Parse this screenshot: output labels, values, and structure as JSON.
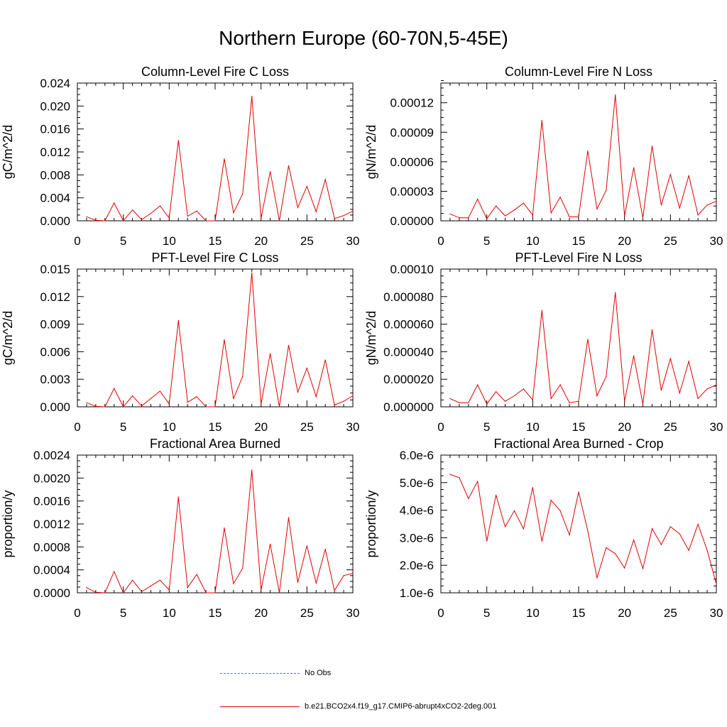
{
  "figure": {
    "title": "Northern Europe (60-70N,5-45E)",
    "line_color": "#e00000",
    "obs_color": "#5b6fb5"
  },
  "legend": [
    {
      "label": "No Obs",
      "style": "dashed",
      "color": "#5b6fb5"
    },
    {
      "label": "b.e21.BCO2x4.f19_g17.CMIP6-abrupt4xCO2-2deg.001",
      "style": "solid",
      "color": "#e00000"
    }
  ],
  "chart_data": [
    {
      "type": "line",
      "title": "Column-Level Fire C Loss",
      "xlabel": "",
      "ylabel": "gC/m^2/d",
      "xlim": [
        0,
        30
      ],
      "ylim": [
        0,
        0.024
      ],
      "xticks": [
        "0",
        "5",
        "10",
        "15",
        "20",
        "25",
        "30"
      ],
      "xtick_values": [
        0,
        5,
        10,
        15,
        20,
        25,
        30
      ],
      "yticks": [
        "0.000",
        "0.004",
        "0.008",
        "0.012",
        "0.016",
        "0.020",
        "0.024"
      ],
      "ytick_values": [
        0,
        0.004,
        0.008,
        0.012,
        0.016,
        0.02,
        0.024
      ],
      "x": [
        1,
        2,
        3,
        4,
        5,
        6,
        7,
        8,
        9,
        10,
        11,
        12,
        13,
        14,
        15,
        16,
        17,
        18,
        19,
        20,
        21,
        22,
        23,
        24,
        25,
        26,
        27,
        28,
        29,
        30
      ],
      "series": [
        {
          "name": "b.e21.BCO2x4.f19_g17.CMIP6-abrupt4xCO2-2deg.001",
          "values": [
            0.0007,
            0.0001,
            0.0,
            0.0031,
            0.0,
            0.0019,
            0.0002,
            0.0013,
            0.0026,
            0.0005,
            0.014,
            0.0008,
            0.0017,
            0.0,
            0.0,
            0.0108,
            0.0014,
            0.0047,
            0.0217,
            0.0004,
            0.0086,
            0.0,
            0.0096,
            0.0023,
            0.006,
            0.0016,
            0.0072,
            0.0004,
            0.0009,
            0.0017
          ]
        }
      ]
    },
    {
      "type": "line",
      "title": "Column-Level Fire N Loss",
      "xlabel": "",
      "ylabel": "gN/m^2/d",
      "xlim": [
        0,
        30
      ],
      "ylim": [
        0,
        0.00014
      ],
      "xticks": [
        "0",
        "5",
        "10",
        "15",
        "20",
        "25",
        "30"
      ],
      "xtick_values": [
        0,
        5,
        10,
        15,
        20,
        25,
        30
      ],
      "yticks": [
        "0.00000",
        "0.00003",
        "0.00006",
        "0.00009",
        "0.00012"
      ],
      "ytick_values": [
        0,
        3e-05,
        6e-05,
        9e-05,
        0.00012
      ],
      "x": [
        1,
        2,
        3,
        4,
        5,
        6,
        7,
        8,
        9,
        10,
        11,
        12,
        13,
        14,
        15,
        16,
        17,
        18,
        19,
        20,
        21,
        22,
        23,
        24,
        25,
        26,
        27,
        28,
        29,
        30
      ],
      "series": [
        {
          "name": "b.e21.BCO2x4.f19_g17.CMIP6-abrupt4xCO2-2deg.001",
          "values": [
            7e-06,
            3e-06,
            3e-06,
            2.2e-05,
            2e-06,
            1.5e-05,
            5e-06,
            1.1e-05,
            1.8e-05,
            6e-06,
            0.000102,
            8e-06,
            2.4e-05,
            4e-06,
            4e-06,
            7.1e-05,
            1.2e-05,
            3.1e-05,
            0.000128,
            5e-06,
            5.4e-05,
            3e-06,
            7.6e-05,
            1.6e-05,
            4.7e-05,
            1.3e-05,
            4.6e-05,
            6e-06,
            1.6e-05,
            2e-05
          ]
        }
      ]
    },
    {
      "type": "line",
      "title": "PFT-Level Fire C Loss",
      "xlabel": "",
      "ylabel": "gC/m^2/d",
      "xlim": [
        0,
        30
      ],
      "ylim": [
        0,
        0.015
      ],
      "xticks": [
        "0",
        "5",
        "10",
        "15",
        "20",
        "25",
        "30"
      ],
      "xtick_values": [
        0,
        5,
        10,
        15,
        20,
        25,
        30
      ],
      "yticks": [
        "0.000",
        "0.003",
        "0.006",
        "0.009",
        "0.012",
        "0.015"
      ],
      "ytick_values": [
        0,
        0.003,
        0.006,
        0.009,
        0.012,
        0.015
      ],
      "x": [
        1,
        2,
        3,
        4,
        5,
        6,
        7,
        8,
        9,
        10,
        11,
        12,
        13,
        14,
        15,
        16,
        17,
        18,
        19,
        20,
        21,
        22,
        23,
        24,
        25,
        26,
        27,
        28,
        29,
        30
      ],
      "series": [
        {
          "name": "b.e21.BCO2x4.f19_g17.CMIP6-abrupt4xCO2-2deg.001",
          "values": [
            0.00045,
            5e-05,
            0.0,
            0.002,
            0.0,
            0.0012,
            0.0001,
            0.0009,
            0.0017,
            0.0003,
            0.0094,
            0.0005,
            0.0011,
            0.0,
            0.0,
            0.0073,
            0.0009,
            0.0033,
            0.0146,
            0.0003,
            0.0058,
            0.0,
            0.0067,
            0.0016,
            0.0042,
            0.0011,
            0.0051,
            0.0002,
            0.0006,
            0.0012
          ]
        }
      ]
    },
    {
      "type": "line",
      "title": "PFT-Level Fire N Loss",
      "xlabel": "",
      "ylabel": "gN/m^2/d",
      "xlim": [
        0,
        30
      ],
      "ylim": [
        0,
        0.0001
      ],
      "xticks": [
        "0",
        "5",
        "10",
        "15",
        "20",
        "25",
        "30"
      ],
      "xtick_values": [
        0,
        5,
        10,
        15,
        20,
        25,
        30
      ],
      "yticks": [
        "0.000000",
        "0.000020",
        "0.000040",
        "0.000060",
        "0.000080",
        "0.00010"
      ],
      "ytick_values": [
        0,
        2e-05,
        4e-05,
        6e-05,
        8e-05,
        0.0001
      ],
      "x": [
        1,
        2,
        3,
        4,
        5,
        6,
        7,
        8,
        9,
        10,
        11,
        12,
        13,
        14,
        15,
        16,
        17,
        18,
        19,
        20,
        21,
        22,
        23,
        24,
        25,
        26,
        27,
        28,
        29,
        30
      ],
      "series": [
        {
          "name": "b.e21.BCO2x4.f19_g17.CMIP6-abrupt4xCO2-2deg.001",
          "values": [
            6e-06,
            3e-06,
            3e-06,
            1.6e-05,
            2e-06,
            1.1e-05,
            4e-06,
            8e-06,
            1.3e-05,
            5e-06,
            7e-05,
            6e-06,
            1.6e-05,
            3e-06,
            4e-06,
            4.9e-05,
            8e-06,
            2.2e-05,
            8.3e-05,
            4e-06,
            3.7e-05,
            2e-06,
            5.6e-05,
            1.2e-05,
            3.5e-05,
            1e-05,
            3.3e-05,
            6e-06,
            1.3e-05,
            1.6e-05
          ]
        }
      ]
    },
    {
      "type": "line",
      "title": "Fractional Area Burned",
      "xlabel": "",
      "ylabel": "proportion/y",
      "xlim": [
        0,
        30
      ],
      "ylim": [
        0,
        0.0024
      ],
      "xticks": [
        "0",
        "5",
        "10",
        "15",
        "20",
        "25",
        "30"
      ],
      "xtick_values": [
        0,
        5,
        10,
        15,
        20,
        25,
        30
      ],
      "yticks": [
        "0.0000",
        "0.0004",
        "0.0008",
        "0.0012",
        "0.0016",
        "0.0020",
        "0.0024"
      ],
      "ytick_values": [
        0,
        0.0004,
        0.0008,
        0.0012,
        0.0016,
        0.002,
        0.0024
      ],
      "x": [
        1,
        2,
        3,
        4,
        5,
        6,
        7,
        8,
        9,
        10,
        11,
        12,
        13,
        14,
        15,
        16,
        17,
        18,
        19,
        20,
        21,
        22,
        23,
        24,
        25,
        26,
        27,
        28,
        29,
        30
      ],
      "series": [
        {
          "name": "b.e21.BCO2x4.f19_g17.CMIP6-abrupt4xCO2-2deg.001",
          "values": [
            9e-05,
            1e-05,
            0.0,
            0.00037,
            0.0,
            0.00022,
            2e-05,
            0.00012,
            0.00022,
            5e-05,
            0.00167,
            9e-05,
            0.00032,
            0.0,
            0.0,
            0.00113,
            0.00016,
            0.00043,
            0.00214,
            5e-05,
            0.00085,
            0.0,
            0.00131,
            0.00018,
            0.00082,
            0.00017,
            0.00076,
            4e-05,
            0.0003,
            0.00034
          ]
        }
      ]
    },
    {
      "type": "line",
      "title": "Fractional Area Burned - Crop",
      "xlabel": "",
      "ylabel": "proportion/y",
      "xlim": [
        0,
        30
      ],
      "ylim": [
        1e-06,
        6e-06
      ],
      "xticks": [
        "0",
        "5",
        "10",
        "15",
        "20",
        "25",
        "30"
      ],
      "xtick_values": [
        0,
        5,
        10,
        15,
        20,
        25,
        30
      ],
      "yticks": [
        "1.0e-6",
        "2.0e-6",
        "3.0e-6",
        "4.0e-6",
        "5.0e-6",
        "6.0e-6"
      ],
      "ytick_values": [
        1e-06,
        2e-06,
        3e-06,
        4e-06,
        5e-06,
        6e-06
      ],
      "x": [
        1,
        2,
        3,
        4,
        5,
        6,
        7,
        8,
        9,
        10,
        11,
        12,
        13,
        14,
        15,
        16,
        17,
        18,
        19,
        20,
        21,
        22,
        23,
        24,
        25,
        26,
        27,
        28,
        29,
        30
      ],
      "series": [
        {
          "name": "b.e21.BCO2x4.f19_g17.CMIP6-abrupt4xCO2-2deg.001",
          "values": [
            5.3e-06,
            5.18e-06,
            4.42e-06,
            5.04e-06,
            2.88e-06,
            4.55e-06,
            3.4e-06,
            3.98e-06,
            3.32e-06,
            4.82e-06,
            2.87e-06,
            4.36e-06,
            3.98e-06,
            3.1e-06,
            4.66e-06,
            3.25e-06,
            1.54e-06,
            2.64e-06,
            2.42e-06,
            1.9e-06,
            2.92e-06,
            1.88e-06,
            3.33e-06,
            2.75e-06,
            3.4e-06,
            3.14e-06,
            2.54e-06,
            3.49e-06,
            2.54e-06,
            1.32e-06
          ]
        }
      ]
    }
  ]
}
